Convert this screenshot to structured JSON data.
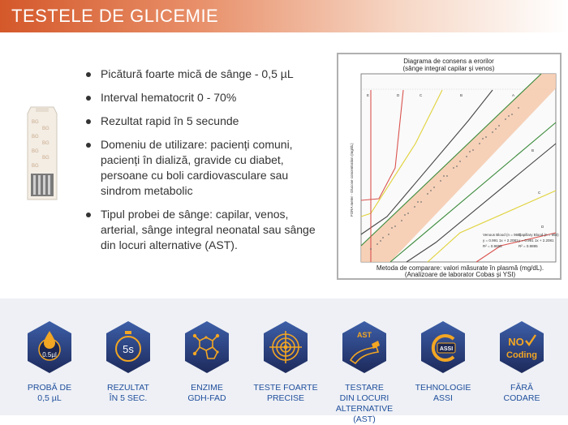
{
  "header": {
    "title": "TESTELE DE GLICEMIE"
  },
  "features": [
    "Picătură foarte mică de sânge - 0,5 µL",
    "Interval hematocrit 0 - 70%",
    "Rezultat rapid în 5 secunde",
    "Domeniu de utilizare: pacienți comuni, pacienți în dializă, gravide cu diabet, persoane cu boli cardiovasculare sau sindrom metabolic",
    "Tipul probei de sânge: capilar, venos, arterial, sânge integral neonatal sau sânge din locuri alternative (AST)."
  ],
  "chart": {
    "title_line1": "Diagrama de consens a erorilor",
    "title_line2": "(sânge integral capilar și venos)",
    "ylabel": "FORA meter - Glucose concentration (mg/dL)",
    "xlabel_line1": "Metoda de comparare: valori măsurate în plasmă (mg/dL).",
    "xlabel_line2": "(Analizoare de laborator Cobas și YSI)",
    "zone_labels": [
      "E",
      "D",
      "C",
      "B",
      "A",
      "B",
      "C",
      "D"
    ],
    "fit_venous": [
      "Venous Blood (n = 960)",
      "y = 0.991 1x + 2.2081",
      "R² = 0.9895"
    ],
    "fit_capillary": [
      "Capillary Blood (n = 960)",
      "y = 0.991 1x + 2.2081",
      "R² = 0.9895"
    ],
    "colors": {
      "zone_a": "#f4c9ab",
      "line_a": "#3a8a3a",
      "line_b": "#444444",
      "line_c": "#e0d23a",
      "line_d": "#d9534f"
    }
  },
  "strip": {
    "print": "BG"
  },
  "bottom_features": [
    {
      "icon": "blood-drop-icon",
      "icon_text": "0.5µl",
      "line1": "PROBĂ DE",
      "line2": "0,5  µL"
    },
    {
      "icon": "stopwatch-icon",
      "icon_text": "5s",
      "line1": "REZULTAT",
      "line2": "ÎN 5 SEC."
    },
    {
      "icon": "molecule-icon",
      "icon_text": "",
      "line1": "ENZIME",
      "line2": "GDH-FAD"
    },
    {
      "icon": "target-icon",
      "icon_text": "",
      "line1": "TESTE FOARTE",
      "line2": "PRECISE"
    },
    {
      "icon": "arm-test-icon",
      "icon_text": "AST",
      "line1": "TESTARE",
      "line2": "DIN LOCURI",
      "line3": "ALTERNATIVE (AST)"
    },
    {
      "icon": "assi-logo-icon",
      "icon_text": "ASSI",
      "line1": "TEHNOLOGIE",
      "line2": "ASSI"
    },
    {
      "icon": "no-coding-icon",
      "icon_text1": "NO",
      "icon_text2": "Coding",
      "line1": "FĂRĂ",
      "line2": "CODARE"
    }
  ],
  "brand_colors": {
    "banner": "#d4582a",
    "icon_gradient_top": "#3d5fa8",
    "icon_gradient_bottom": "#1d2a5c",
    "icon_accent": "#f2a623",
    "label": "#1f4e9c"
  }
}
